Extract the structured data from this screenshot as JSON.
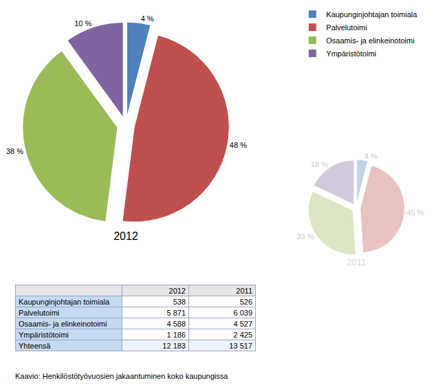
{
  "chart_data": [
    {
      "type": "pie",
      "title": "2012",
      "categories": [
        "Kaupunginjohtajan toimiala",
        "Palvelutoimi",
        "Osaamis- ja elinkeinotoimi",
        "Ympäristötoimi"
      ],
      "values": [
        4,
        48,
        38,
        10
      ],
      "value_labels": [
        "4 %",
        "48 %",
        "38 %",
        "10 %"
      ],
      "colors": [
        "#4f81bd",
        "#c0504d",
        "#9bbb59",
        "#8064a2"
      ],
      "data_labels": true,
      "legend": "top right"
    },
    {
      "type": "pie",
      "title": "2011",
      "categories": [
        "Kaupunginjohtajan toimiala",
        "Palvelutoimi",
        "Osaamis- ja elinkeinotoimi",
        "Ympäristötoimi"
      ],
      "values": [
        4,
        45,
        33,
        18
      ],
      "value_labels": [
        "4 %",
        "45 %",
        "33 %",
        "18 %"
      ],
      "colors": [
        "#4f81bd",
        "#c0504d",
        "#9bbb59",
        "#8064a2"
      ],
      "data_labels": true
    }
  ],
  "table": {
    "header": [
      "",
      "2012",
      "2011"
    ],
    "rows": [
      [
        "Kaupunginjohtajan toimiala",
        "538",
        "526"
      ],
      [
        "Palvelutoimi",
        "5 871",
        "6 039"
      ],
      [
        "Osaamis- ja elinkeinotoimi",
        "4 588",
        "4 527"
      ],
      [
        "Ympäristötoimi",
        "1 186",
        "2 425"
      ],
      [
        "Yhteensä",
        "12 183",
        "13 517"
      ]
    ]
  },
  "caption": "Kaavio: Henkilöstötyövuosien jakaantuminen koko kaupungissa"
}
